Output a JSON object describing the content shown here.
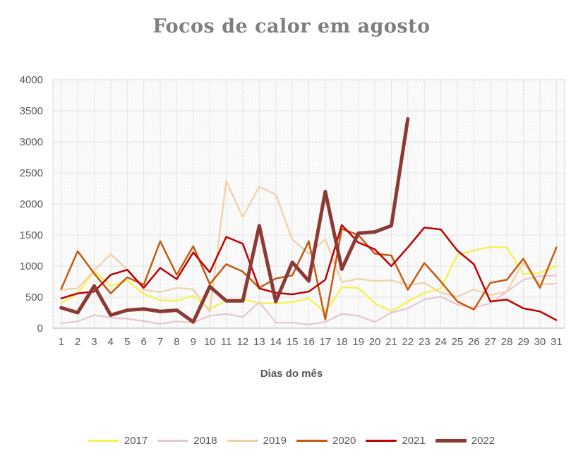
{
  "title": "Focos de calor em agosto",
  "axis": {
    "x_title": "Dias do mês",
    "y_ticks": [
      0,
      500,
      1000,
      1500,
      2000,
      2500,
      3000,
      3500,
      4000
    ],
    "x_ticks": [
      1,
      2,
      3,
      4,
      5,
      6,
      7,
      8,
      9,
      10,
      11,
      12,
      13,
      14,
      15,
      16,
      17,
      18,
      19,
      20,
      21,
      22,
      23,
      24,
      25,
      26,
      27,
      28,
      29,
      30,
      31
    ]
  },
  "colors": {
    "title_text": "#7f7f7f",
    "axis_text": "#595959",
    "gridline": "#e3e3e3",
    "plot_border": "#d9d9d9",
    "axis_line": "#bfbfbf",
    "hatch": "#ececec",
    "background": "#ffffff"
  },
  "chart_data": {
    "type": "line",
    "title": "Focos de calor em agosto",
    "xlabel": "Dias do mês",
    "ylabel": "",
    "x": [
      1,
      2,
      3,
      4,
      5,
      6,
      7,
      8,
      9,
      10,
      11,
      12,
      13,
      14,
      15,
      16,
      17,
      18,
      19,
      20,
      21,
      22,
      23,
      24,
      25,
      26,
      27,
      28,
      29,
      30,
      31
    ],
    "ylim": [
      0,
      4000
    ],
    "y_tick_step": 500,
    "grid": true,
    "plot_background": "diagonal-hatch",
    "legend_position": "bottom",
    "series": [
      {
        "name": "2017",
        "color": "#f7f05a",
        "width": 2.5,
        "values": [
          400,
          560,
          920,
          680,
          770,
          550,
          450,
          440,
          520,
          310,
          440,
          470,
          400,
          400,
          420,
          480,
          250,
          660,
          650,
          400,
          270,
          430,
          570,
          640,
          1180,
          1250,
          1310,
          1300,
          870,
          890,
          1000
        ]
      },
      {
        "name": "2018",
        "color": "#e5c8cf",
        "width": 2.25,
        "values": [
          80,
          110,
          210,
          170,
          150,
          115,
          70,
          110,
          90,
          200,
          230,
          180,
          420,
          90,
          90,
          60,
          100,
          230,
          200,
          100,
          250,
          320,
          460,
          510,
          380,
          330,
          400,
          590,
          780,
          840,
          850
        ]
      },
      {
        "name": "2019",
        "color": "#f2d0a7",
        "width": 2.25,
        "values": [
          620,
          640,
          930,
          1190,
          950,
          620,
          580,
          650,
          625,
          265,
          2370,
          1790,
          2280,
          2150,
          1430,
          1200,
          1430,
          740,
          795,
          760,
          770,
          700,
          730,
          570,
          510,
          625,
          530,
          590,
          1060,
          700,
          720
        ]
      },
      {
        "name": "2020",
        "color": "#c55a11",
        "width": 2.5,
        "values": [
          630,
          1240,
          880,
          560,
          820,
          700,
          1400,
          860,
          1320,
          710,
          1030,
          910,
          650,
          800,
          850,
          1400,
          140,
          1600,
          1500,
          1200,
          1170,
          620,
          1050,
          750,
          430,
          300,
          730,
          780,
          1120,
          650,
          1300
        ]
      },
      {
        "name": "2021",
        "color": "#c00000",
        "width": 2.5,
        "values": [
          480,
          560,
          590,
          860,
          940,
          650,
          970,
          790,
          1220,
          900,
          1470,
          1360,
          640,
          570,
          545,
          590,
          780,
          1660,
          1380,
          1270,
          1000,
          1300,
          1620,
          1590,
          1250,
          1030,
          430,
          460,
          320,
          270,
          130
        ]
      },
      {
        "name": "2022",
        "color": "#8c3a34",
        "width": 5,
        "values": [
          330,
          250,
          680,
          210,
          290,
          310,
          270,
          290,
          100,
          670,
          440,
          440,
          1650,
          430,
          1060,
          760,
          2200,
          950,
          1530,
          1550,
          1650,
          3370,
          null,
          null,
          null,
          null,
          null,
          null,
          null,
          null,
          null
        ]
      }
    ]
  }
}
